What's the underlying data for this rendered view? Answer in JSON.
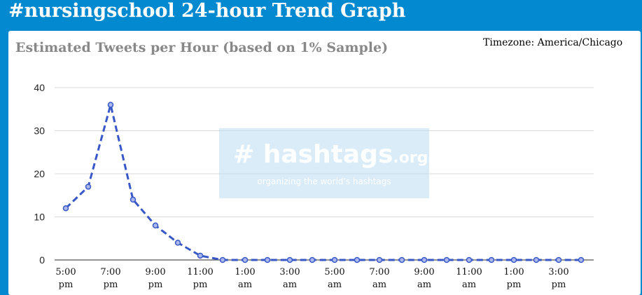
{
  "header": {
    "title": "#nursingschool 24-hour Trend Graph"
  },
  "timezone": "Timezone: America/Chicago",
  "watermark": {
    "brand": "# hashtags",
    "domain": ".org",
    "tagline": "organizing the world's hashtags"
  },
  "colors": {
    "header_bg": "#0289d0",
    "line": "#3858c7",
    "title_text": "#888888",
    "grid": "#d9d9d9"
  },
  "chart_data": {
    "type": "line",
    "title": "Estimated Tweets per Hour (based on 1% Sample)",
    "xlabel": "",
    "ylabel": "",
    "ylim": [
      0,
      40
    ],
    "yticks": [
      0,
      10,
      20,
      30,
      40
    ],
    "x_tick_labels": [
      [
        "5:00",
        "pm"
      ],
      [
        "7:00",
        "pm"
      ],
      [
        "9:00",
        "pm"
      ],
      [
        "11:00",
        "pm"
      ],
      [
        "1:00",
        "am"
      ],
      [
        "3:00",
        "am"
      ],
      [
        "5:00",
        "am"
      ],
      [
        "7:00",
        "am"
      ],
      [
        "9:00",
        "am"
      ],
      [
        "11:00",
        "am"
      ],
      [
        "1:00",
        "pm"
      ],
      [
        "3:00",
        "pm"
      ]
    ],
    "grid": true,
    "series": [
      {
        "values": [
          12,
          17,
          36,
          14,
          8,
          4,
          1,
          0,
          0,
          0,
          0,
          0,
          0,
          0,
          0,
          0,
          0,
          0,
          0,
          0,
          0,
          0,
          0,
          0
        ],
        "style": "dashed"
      }
    ]
  }
}
